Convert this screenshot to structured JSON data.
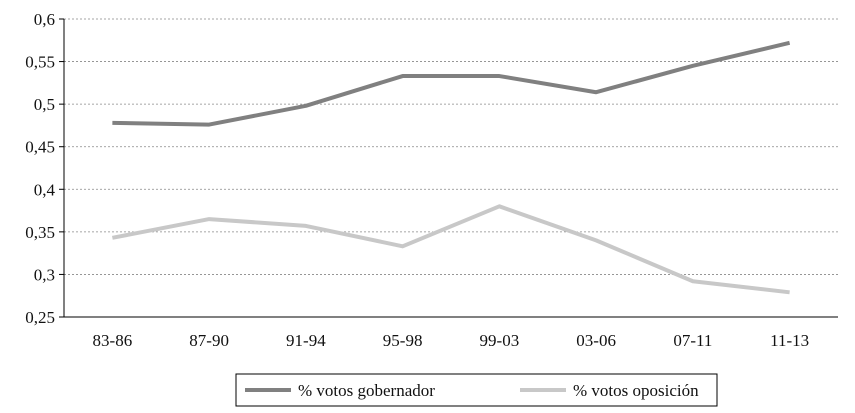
{
  "chart_data": {
    "type": "line",
    "categories": [
      "83-86",
      "87-90",
      "91-94",
      "95-98",
      "99-03",
      "03-06",
      "07-11",
      "11-13"
    ],
    "series": [
      {
        "name": "% votos gobernador",
        "color": "#808080",
        "values": [
          0.478,
          0.476,
          0.498,
          0.533,
          0.533,
          0.514,
          0.545,
          0.572
        ]
      },
      {
        "name": "% votos oposición",
        "color": "#c8c8c8",
        "values": [
          0.343,
          0.365,
          0.357,
          0.333,
          0.38,
          0.34,
          0.292,
          0.279
        ]
      }
    ],
    "ylim": [
      0.25,
      0.6
    ],
    "yticks": [
      {
        "value": 0.25,
        "label": "0,25"
      },
      {
        "value": 0.3,
        "label": "0,3"
      },
      {
        "value": 0.35,
        "label": "0,35"
      },
      {
        "value": 0.4,
        "label": "0,4"
      },
      {
        "value": 0.45,
        "label": "0,45"
      },
      {
        "value": 0.5,
        "label": "0,5"
      },
      {
        "value": 0.55,
        "label": "0,55"
      },
      {
        "value": 0.6,
        "label": "0,6"
      }
    ],
    "grid": true
  }
}
